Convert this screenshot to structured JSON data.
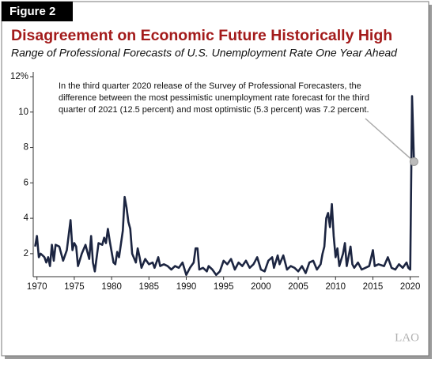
{
  "chart_data": {
    "type": "line",
    "figure_label": "Figure 2",
    "title": "Disagreement on Economic Future Historically High",
    "subtitle": "Range of Professional Forecasts of U.S. Unemployment Rate One Year Ahead",
    "annotation_lines": [
      "In the third quarter 2020 release of the Survey of Professional Forecasters, the",
      "difference between the most pessimistic unemployment rate forecast for the third",
      "quarter of 2021 (12.5 percent) and most optimistic (5.3 percent) was 7.2 percent."
    ],
    "logo": "LAO",
    "color": "#1c2541",
    "xlim": [
      1969.5,
      2021.2
    ],
    "xticks": [
      1970,
      1975,
      1980,
      1985,
      1990,
      1995,
      2000,
      2005,
      2010,
      2015,
      2020
    ],
    "ylim": [
      0.7,
      12
    ],
    "yticks": [
      2,
      4,
      6,
      8,
      10,
      {
        "value": 12,
        "label": "12%"
      }
    ],
    "x": [
      1969.75,
      1970.0,
      1970.25,
      1970.5,
      1970.75,
      1971.0,
      1971.25,
      1971.5,
      1971.75,
      1972.0,
      1972.25,
      1972.5,
      1973.0,
      1973.5,
      1974.0,
      1974.5,
      1974.75,
      1975.0,
      1975.25,
      1975.5,
      1976.0,
      1976.5,
      1977.0,
      1977.25,
      1977.5,
      1977.75,
      1978.25,
      1978.75,
      1979.0,
      1979.25,
      1979.5,
      1979.75,
      1980.25,
      1980.5,
      1980.75,
      1981.0,
      1981.5,
      1981.75,
      1982.0,
      1982.25,
      1982.5,
      1982.75,
      1983.25,
      1983.5,
      1983.75,
      1984.0,
      1984.5,
      1985.0,
      1985.5,
      1985.75,
      1986.25,
      1986.5,
      1987.0,
      1987.5,
      1988.0,
      1988.5,
      1989.0,
      1989.5,
      1990.0,
      1990.5,
      1991.0,
      1991.25,
      1991.5,
      1991.75,
      1992.25,
      1992.75,
      1993.0,
      1993.5,
      1994.0,
      1994.5,
      1995.0,
      1995.5,
      1996.0,
      1996.5,
      1997.0,
      1997.5,
      1998.0,
      1998.5,
      1999.0,
      1999.5,
      2000.0,
      2000.5,
      2001.0,
      2001.5,
      2001.75,
      2002.25,
      2002.5,
      2003.0,
      2003.5,
      2004.0,
      2004.5,
      2005.0,
      2005.5,
      2006.0,
      2006.5,
      2007.0,
      2007.5,
      2008.0,
      2008.25,
      2008.5,
      2008.75,
      2009.0,
      2009.25,
      2009.5,
      2009.75,
      2010.0,
      2010.25,
      2010.5,
      2011.0,
      2011.25,
      2011.5,
      2012.0,
      2012.25,
      2012.5,
      2013.0,
      2013.5,
      2014.0,
      2014.5,
      2015.0,
      2015.25,
      2015.75,
      2016.5,
      2017.0,
      2017.5,
      2018.0,
      2018.5,
      2019.0,
      2019.5,
      2019.75,
      2020.0,
      2020.25,
      2020.5
    ],
    "values": [
      2.4,
      3.0,
      1.8,
      2.0,
      1.9,
      1.8,
      1.5,
      1.8,
      1.3,
      2.5,
      1.6,
      2.5,
      2.4,
      1.6,
      2.2,
      3.9,
      2.2,
      2.6,
      2.4,
      1.3,
      2.0,
      2.5,
      1.7,
      3.0,
      1.5,
      1.0,
      2.6,
      2.5,
      2.9,
      2.6,
      3.4,
      2.7,
      1.5,
      1.4,
      2.1,
      1.8,
      3.3,
      5.2,
      4.6,
      3.8,
      3.4,
      2.0,
      1.5,
      2.3,
      1.8,
      1.2,
      1.7,
      1.4,
      1.5,
      1.2,
      1.8,
      1.3,
      1.4,
      1.3,
      1.1,
      1.3,
      1.2,
      1.5,
      0.8,
      1.2,
      1.5,
      2.3,
      2.3,
      1.1,
      1.2,
      1.0,
      1.3,
      1.1,
      0.8,
      1.0,
      1.6,
      1.4,
      1.7,
      1.1,
      1.5,
      1.3,
      1.6,
      1.2,
      1.4,
      1.8,
      1.1,
      1.0,
      1.6,
      1.8,
      1.2,
      1.9,
      1.4,
      1.9,
      1.1,
      1.3,
      1.2,
      1.0,
      1.3,
      0.9,
      1.5,
      1.6,
      1.1,
      1.4,
      2.0,
      2.4,
      4.0,
      4.3,
      3.5,
      4.8,
      3.0,
      1.8,
      2.3,
      1.3,
      2.0,
      2.6,
      1.3,
      2.4,
      1.4,
      1.2,
      1.5,
      1.1,
      1.2,
      1.3,
      2.2,
      1.3,
      1.4,
      1.3,
      1.8,
      1.2,
      1.1,
      1.4,
      1.2,
      1.5,
      1.2,
      1.1,
      10.9,
      7.2
    ]
  }
}
